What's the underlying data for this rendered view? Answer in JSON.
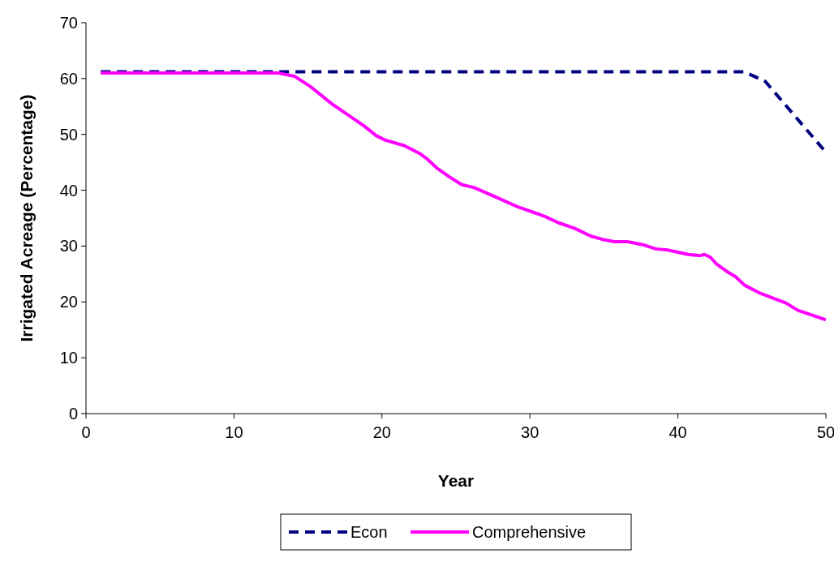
{
  "chart_data": {
    "type": "line",
    "xlabel": "Year",
    "ylabel": "Irrigated Acreage (Percentage)",
    "xlim": [
      0,
      50
    ],
    "xticks": [
      0,
      10,
      20,
      30,
      40,
      50
    ],
    "ylim": [
      0,
      70
    ],
    "yticks": [
      0,
      10,
      20,
      30,
      40,
      50,
      60,
      70
    ],
    "grid": false,
    "legend": "bottom",
    "series": [
      {
        "name": "Econ",
        "color": "#000080",
        "line_style": "dashed",
        "x": [
          1,
          10,
          20,
          30,
          40,
          44.5,
          45.9,
          50
        ],
        "values": [
          61.2,
          61.2,
          61.2,
          61.2,
          61.2,
          61.2,
          59.5,
          46.8
        ]
      },
      {
        "name": "Comprehensive",
        "color": "#ff00ff",
        "line_style": "solid",
        "x": [
          1,
          13,
          14.1,
          15.2,
          16.6,
          17.7,
          18.8,
          19.6,
          20.2,
          21.5,
          22.6,
          23.1,
          23.7,
          24.5,
          25.4,
          26.2,
          27.5,
          29.2,
          30.5,
          31.1,
          31.9,
          33.0,
          34.1,
          34.9,
          35.7,
          36.6,
          37.7,
          38.5,
          39.3,
          40.7,
          41.5,
          41.8,
          42.2,
          42.6,
          43.4,
          43.9,
          44.5,
          45.6,
          47.3,
          48.1,
          50
        ],
        "values": [
          61,
          61,
          60.4,
          58.5,
          55.5,
          53.5,
          51.5,
          49.8,
          49,
          48,
          46.5,
          45.5,
          44,
          42.5,
          41,
          40.5,
          39,
          37,
          35.8,
          35.2,
          34.2,
          33.2,
          31.8,
          31.2,
          30.8,
          30.8,
          30.2,
          29.5,
          29.3,
          28.5,
          28.3,
          28.5,
          28,
          26.8,
          25.3,
          24.5,
          23,
          21.5,
          19.8,
          18.5,
          16.8
        ]
      }
    ]
  }
}
